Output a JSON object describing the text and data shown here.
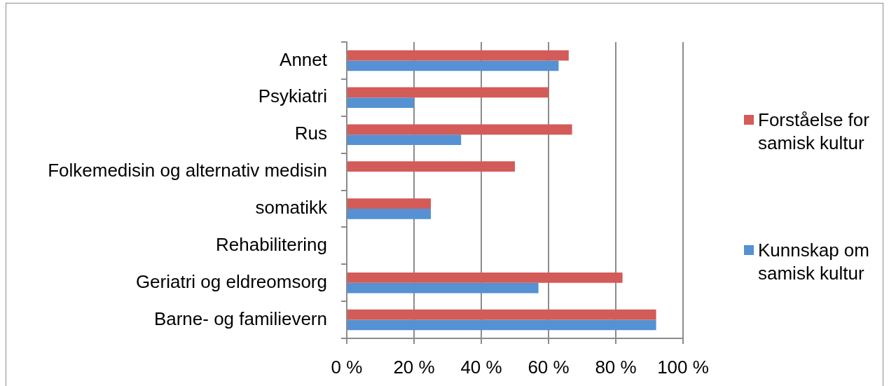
{
  "chart_data": {
    "type": "bar",
    "orientation": "horizontal",
    "categories": [
      "Annet",
      "Psykiatri",
      "Rus",
      "Folkemedisin og alternativ medisin",
      "somatikk",
      "Rehabilitering",
      "Geriatri og eldreomsorg",
      "Barne- og familievern"
    ],
    "series": [
      {
        "name": "Forståelse for samisk kultur",
        "color": "#d35b58",
        "values": [
          66,
          60,
          67,
          50,
          25,
          0,
          82,
          92
        ]
      },
      {
        "name": "Kunnskap om samisk kultur",
        "color": "#5591d3",
        "values": [
          63,
          20,
          34,
          0,
          25,
          0,
          57,
          92
        ]
      }
    ],
    "xlim": [
      0,
      100
    ],
    "xticks": [
      {
        "value": 0,
        "label": "0 %"
      },
      {
        "value": 20,
        "label": "20 %"
      },
      {
        "value": 40,
        "label": "40 %"
      },
      {
        "value": 60,
        "label": "60 %"
      },
      {
        "value": 80,
        "label": "80 %"
      },
      {
        "value": 100,
        "label": "100 %"
      }
    ],
    "grid": "x",
    "legend": "right"
  }
}
